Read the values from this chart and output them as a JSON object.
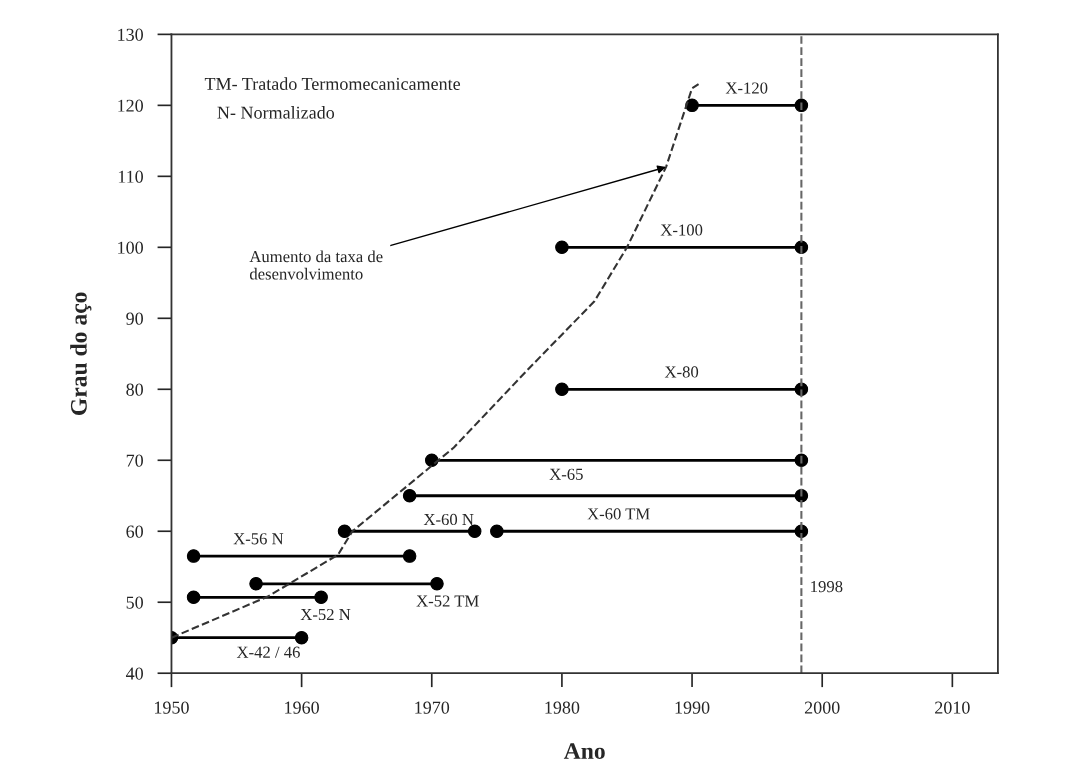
{
  "chart_data": {
    "type": "line",
    "xlabel": "Ano",
    "ylabel": "Grau do aço",
    "xlim": [
      1950,
      2013.5
    ],
    "xticks": [
      1950,
      1960,
      1970,
      1980,
      1990,
      2000,
      2010
    ],
    "ylim": [
      40,
      130
    ],
    "yticks": [
      40,
      50,
      60,
      70,
      80,
      90,
      100,
      110,
      120,
      130
    ],
    "grid": false,
    "legend": false,
    "marker": "circle",
    "series": [
      {
        "name": "X-42 / 46",
        "color": "#000000",
        "x": [
          1950,
          1960
        ],
        "values": [
          45,
          45
        ]
      },
      {
        "name": "X-52 N",
        "color": "#000000",
        "x": [
          1951.7,
          1961.5
        ],
        "values": [
          50.7,
          50.7
        ]
      },
      {
        "name": "X-52 TM",
        "color": "#000000",
        "x": [
          1956.5,
          1970.4
        ],
        "values": [
          52.6,
          52.6
        ]
      },
      {
        "name": "X-56 N",
        "color": "#000000",
        "x": [
          1951.7,
          1968.3
        ],
        "values": [
          56.5,
          56.5
        ]
      },
      {
        "name": "X-60 N",
        "color": "#000000",
        "x": [
          1963.3,
          1973.3
        ],
        "values": [
          60,
          60
        ]
      },
      {
        "name": "X-60 TM",
        "color": "#000000",
        "x": [
          1975,
          1998.4
        ],
        "values": [
          60,
          60
        ]
      },
      {
        "name": "X-65",
        "color": "#000000",
        "x": [
          1968.3,
          1998.4
        ],
        "values": [
          65,
          65
        ]
      },
      {
        "color": "#000000",
        "x": [
          1970,
          1998.4
        ],
        "values": [
          70,
          70
        ]
      },
      {
        "name": "X-80",
        "color": "#000000",
        "x": [
          1980,
          1998.4
        ],
        "values": [
          80,
          80
        ]
      },
      {
        "name": "X-100",
        "color": "#000000",
        "x": [
          1980,
          1998.4
        ],
        "values": [
          100,
          100
        ]
      },
      {
        "name": "X-120",
        "color": "#000000",
        "x": [
          1990,
          1998.4
        ],
        "values": [
          120,
          120
        ]
      },
      {
        "color": "#333333",
        "marker": "none",
        "line_style": "dashed",
        "x": [
          1950,
          1957.4,
          1962.8,
          1963.9,
          1971.7,
          1977.5,
          1982.5,
          1985,
          1988,
          1990,
          1990.5
        ],
        "values": [
          45,
          50.8,
          56.7,
          60,
          71.8,
          83,
          92.4,
          100,
          111.3,
          122.4,
          123
        ]
      }
    ],
    "ref_lines": [
      {
        "axis": "x",
        "value": 1998.4,
        "label": "1998",
        "color": "#666666",
        "line_style": "dashed"
      }
    ],
    "annotations": [
      "TM- Tratado Termomecanicamente",
      "N- Normalizado",
      {
        "text": "Aumento da taxa de\ndesenvolvimento",
        "x": 1988,
        "y": 111.3
      }
    ]
  }
}
